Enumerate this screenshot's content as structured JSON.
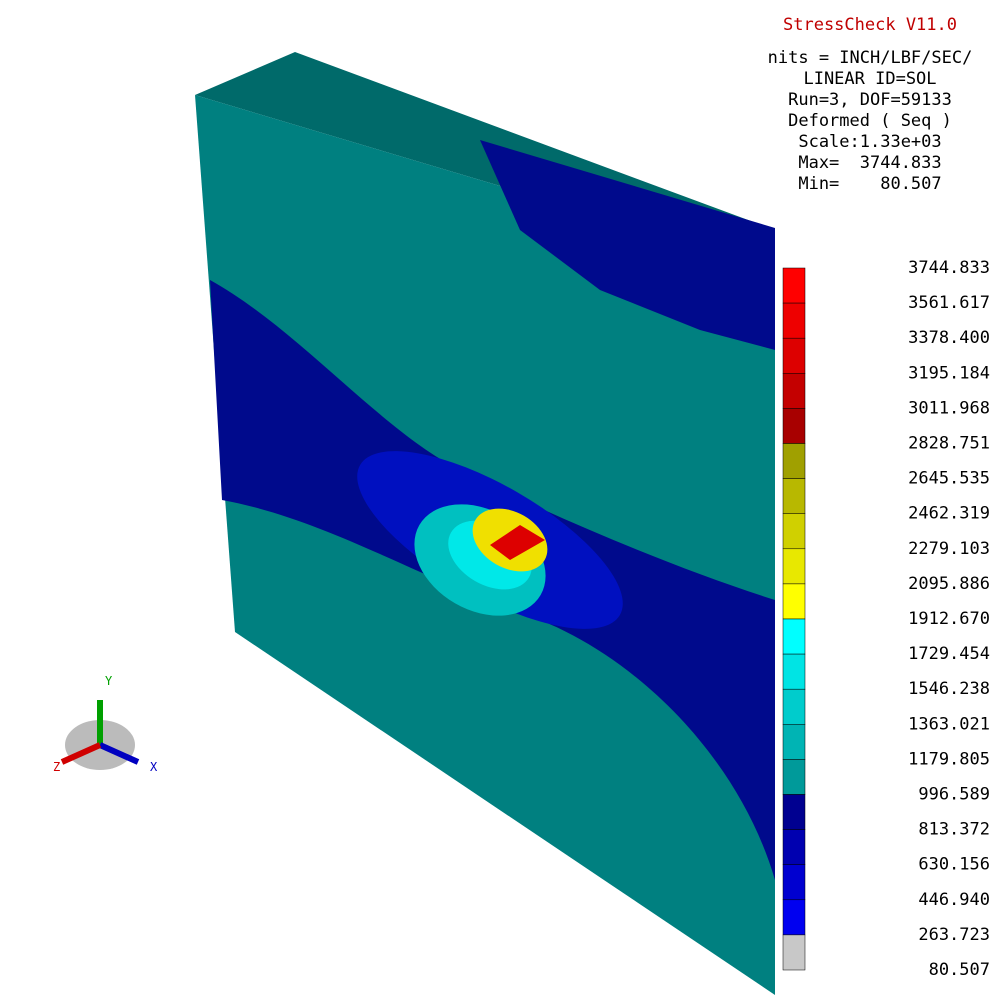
{
  "header": {
    "title": "StressCheck V11.0",
    "lines": [
      "nits = INCH/LBF/SEC/",
      "LINEAR ID=SOL",
      "Run=3, DOF=59133",
      "Deformed ( Seq )",
      "Scale:1.33e+03",
      "Max=  3744.833",
      "Min=    80.507"
    ]
  },
  "legend": {
    "labels": [
      "3744.833",
      "3561.617",
      "3378.400",
      "3195.184",
      "3011.968",
      "2828.751",
      "2645.535",
      "2462.319",
      "2279.103",
      "2095.886",
      "1912.670",
      "1729.454",
      "1546.238",
      "1363.021",
      "1179.805",
      "996.589",
      "813.372",
      "630.156",
      "446.940",
      "263.723",
      "80.507"
    ]
  },
  "triad": {
    "x": "X",
    "y": "Y",
    "z": "Z"
  }
}
